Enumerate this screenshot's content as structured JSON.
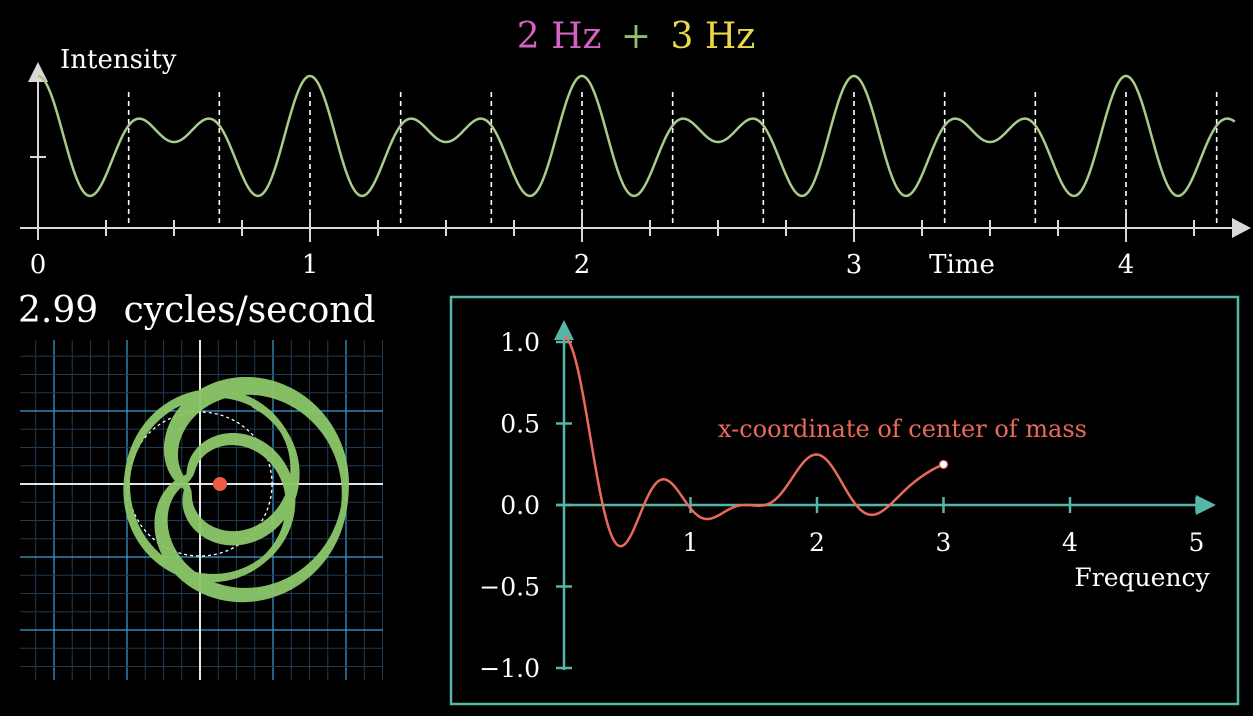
{
  "title": {
    "part1": "2 Hz",
    "plus": "+",
    "part2": "3 Hz",
    "color1": "#d561c0",
    "color_plus": "#8fbf6b",
    "color2": "#e8d84a"
  },
  "colors": {
    "background": "#000000",
    "axis": "#d9d9d9",
    "signal": "#a8cc8c",
    "winding": "#8cc76a",
    "com_dot": "#ee5a43",
    "fourier_curve": "#e96a5a",
    "fourier_axis": "#56b6a8",
    "panel_border": "#56b6a8",
    "grid_major": "#3c9fd8",
    "grid_minor": "#1d3b52"
  },
  "chart_data": [
    {
      "type": "line",
      "name": "signal",
      "ylabel": "Intensity",
      "xlabel": "Time",
      "x_ticks": [
        "0",
        "1",
        "2",
        "3",
        "4"
      ],
      "xlim": [
        0,
        4.4
      ],
      "components_hz": [
        2,
        3
      ],
      "guides": "dashed vertical lines every 1/3 s",
      "grid": false
    },
    {
      "type": "line",
      "name": "winding",
      "label_value": "2.99",
      "label_unit": "cycles/second",
      "winding_frequency": 2.99,
      "center_of_mass_marker": "red dot",
      "grid": true
    },
    {
      "type": "line",
      "name": "fourier",
      "annotation": "x-coordinate of center of mass",
      "xlabel": "Frequency",
      "x_ticks": [
        "1",
        "2",
        "3",
        "4",
        "5"
      ],
      "y_ticks": [
        "1.0",
        "0.5",
        "0.0",
        "−0.5",
        "−1.0"
      ],
      "xlim": [
        0,
        5
      ],
      "ylim": [
        -1,
        1
      ],
      "x_end": 3,
      "end_value": 0.27,
      "peaks": [
        {
          "x": 0,
          "y": 1.0
        },
        {
          "x": 2,
          "y": 0.24
        }
      ],
      "grid": false
    }
  ]
}
